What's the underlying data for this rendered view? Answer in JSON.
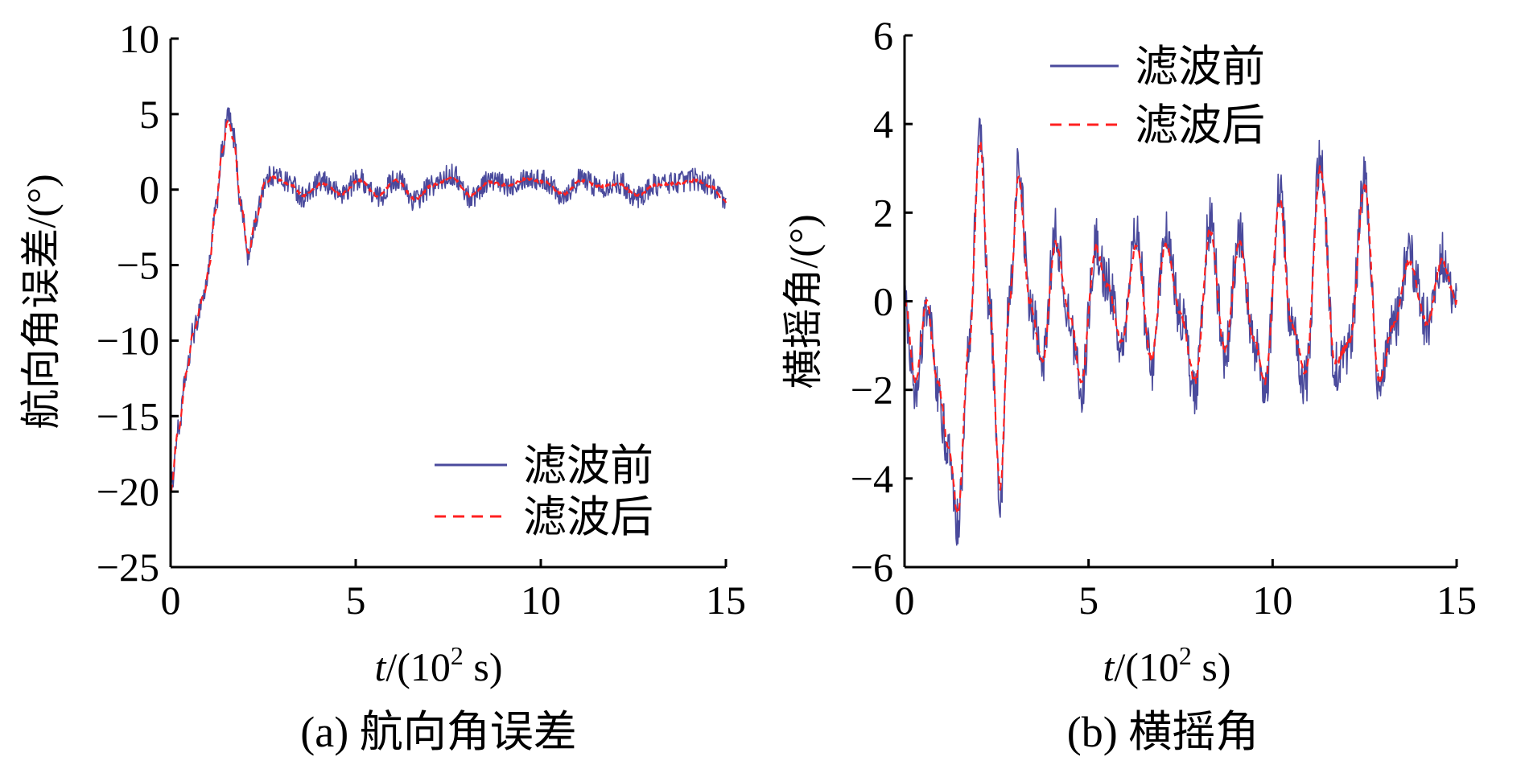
{
  "chart_data": [
    {
      "type": "line",
      "caption": "(a) 航向角误差",
      "ylabel": "航向角误差/(°)",
      "xlabel_var": "t",
      "xlabel_rest": "/(10",
      "xlabel_sup": "2",
      "xlabel_end": " s)",
      "xlim": [
        0,
        15
      ],
      "ylim": [
        -25,
        10
      ],
      "xticks": [
        0,
        5,
        10,
        15
      ],
      "xtick_labels": [
        "0",
        "5",
        "10",
        "15"
      ],
      "yticks": [
        -25,
        -20,
        -15,
        -10,
        -5,
        0,
        5,
        10
      ],
      "ytick_labels": [
        "−25",
        "−20",
        "−15",
        "−10",
        "−5",
        "0",
        "5",
        "10"
      ],
      "legend_position": "lower-right",
      "legend": [
        "滤波前",
        "滤波后"
      ],
      "series": [
        {
          "name": "滤波前",
          "color": "#4a4a9c",
          "style": "solid",
          "noise": 0.75,
          "x": [
            0,
            0.2,
            0.45,
            0.6,
            0.9,
            1.05,
            1.2,
            1.4,
            1.55,
            1.7,
            1.9,
            2.1,
            2.3,
            2.55,
            2.75,
            3.2,
            3.6,
            4.1,
            4.6,
            5.1,
            5.6,
            6.1,
            6.6,
            7.1,
            7.6,
            8.1,
            8.6,
            9.1,
            9.6,
            10.1,
            10.6,
            11.1,
            11.6,
            12.1,
            12.6,
            13.1,
            13.6,
            14.2,
            14.6,
            15
          ],
          "y": [
            -20,
            -16,
            -12,
            -9.5,
            -7,
            -5,
            -1.5,
            2.5,
            5,
            3.5,
            -1,
            -4.5,
            -2,
            0.5,
            1,
            0.5,
            -0.5,
            0.5,
            -0.3,
            0.7,
            -0.5,
            0.7,
            -0.7,
            0.3,
            1,
            -0.5,
            0.6,
            0.3,
            0.8,
            0.6,
            -0.3,
            0.7,
            0.2,
            0.5,
            -0.5,
            0.3,
            0.5,
            0.7,
            0.3,
            -1
          ]
        },
        {
          "name": "滤波后",
          "color": "#ff2020",
          "style": "dashed",
          "noise": 0.1,
          "x": [
            0,
            0.2,
            0.45,
            0.6,
            0.9,
            1.05,
            1.2,
            1.4,
            1.55,
            1.7,
            1.9,
            2.1,
            2.3,
            2.55,
            2.75,
            3.2,
            3.6,
            4.1,
            4.6,
            5.1,
            5.6,
            6.1,
            6.6,
            7.1,
            7.6,
            8.1,
            8.6,
            9.1,
            9.6,
            10.1,
            10.6,
            11.1,
            11.6,
            12.1,
            12.6,
            13.1,
            13.6,
            14.2,
            14.6,
            15
          ],
          "y": [
            -20,
            -16,
            -12,
            -9.5,
            -7,
            -5,
            -1.5,
            2.5,
            4.6,
            3.3,
            -1,
            -4.2,
            -2,
            0.4,
            0.8,
            0.4,
            -0.4,
            0.4,
            -0.3,
            0.6,
            -0.4,
            0.6,
            -0.6,
            0.3,
            0.8,
            -0.4,
            0.5,
            0.3,
            0.7,
            0.5,
            -0.3,
            0.6,
            0.2,
            0.4,
            -0.4,
            0.3,
            0.4,
            0.6,
            0.2,
            -0.8
          ]
        }
      ]
    },
    {
      "type": "line",
      "caption": "(b) 横摇角",
      "ylabel": "横摇角/(°)",
      "xlabel_var": "t",
      "xlabel_rest": "/(10",
      "xlabel_sup": "2",
      "xlabel_end": " s)",
      "xlim": [
        0,
        15
      ],
      "ylim": [
        -6,
        6
      ],
      "xticks": [
        0,
        5,
        10,
        15
      ],
      "xtick_labels": [
        "0",
        "5",
        "10",
        "15"
      ],
      "yticks": [
        -6,
        -4,
        -2,
        0,
        2,
        4,
        6
      ],
      "ytick_labels": [
        "−6",
        "−4",
        "−2",
        "0",
        "2",
        "4",
        "6"
      ],
      "legend_position": "top-center",
      "legend": [
        "滤波前",
        "滤波后"
      ],
      "series": [
        {
          "name": "滤波前",
          "color": "#4a4a9c",
          "style": "solid",
          "noise": 0.6,
          "x": [
            0,
            0.3,
            0.6,
            0.9,
            1.2,
            1.45,
            1.75,
            2.05,
            2.3,
            2.6,
            2.85,
            3.1,
            3.4,
            3.75,
            4.1,
            4.5,
            4.8,
            5.2,
            5.5,
            5.9,
            6.3,
            6.7,
            7.1,
            7.5,
            7.9,
            8.3,
            8.7,
            9.1,
            9.5,
            9.8,
            10.2,
            10.5,
            10.9,
            11.3,
            11.7,
            12.1,
            12.5,
            12.9,
            13.3,
            13.7,
            14.2,
            14.6,
            15
          ],
          "y": [
            0,
            -2,
            0,
            -2,
            -3.5,
            -5,
            -1,
            3.8,
            0,
            -4.5,
            0,
            3,
            0,
            -1.5,
            1.5,
            -0.5,
            -2,
            1.3,
            0.5,
            -1,
            1.5,
            -1.5,
            1.5,
            -0.3,
            -2,
            1.8,
            -1.2,
            1.5,
            -1,
            -2,
            2.5,
            -0.5,
            -1.8,
            3.3,
            -1.5,
            -1,
            2.8,
            -2,
            -0.5,
            1,
            -0.5,
            1,
            0
          ]
        },
        {
          "name": "滤波后",
          "color": "#ff2020",
          "style": "dashed",
          "noise": 0.08,
          "x": [
            0,
            0.3,
            0.6,
            0.9,
            1.2,
            1.45,
            1.75,
            2.05,
            2.3,
            2.6,
            2.85,
            3.1,
            3.4,
            3.75,
            4.1,
            4.5,
            4.8,
            5.2,
            5.5,
            5.9,
            6.3,
            6.7,
            7.1,
            7.5,
            7.9,
            8.3,
            8.7,
            9.1,
            9.5,
            9.8,
            10.2,
            10.5,
            10.9,
            11.3,
            11.7,
            12.1,
            12.5,
            12.9,
            13.3,
            13.7,
            14.2,
            14.6,
            15
          ],
          "y": [
            0,
            -1.8,
            0,
            -1.8,
            -3.3,
            -4.8,
            -1,
            3.6,
            0,
            -4.2,
            0,
            2.8,
            0,
            -1.4,
            1.3,
            -0.4,
            -1.8,
            1.2,
            0.4,
            -0.9,
            1.3,
            -1.3,
            1.3,
            -0.3,
            -1.8,
            1.6,
            -1.1,
            1.3,
            -0.9,
            -1.8,
            2.3,
            -0.5,
            -1.6,
            3,
            -1.4,
            -0.9,
            2.6,
            -1.8,
            -0.5,
            0.9,
            -0.5,
            0.9,
            0
          ]
        }
      ]
    }
  ]
}
